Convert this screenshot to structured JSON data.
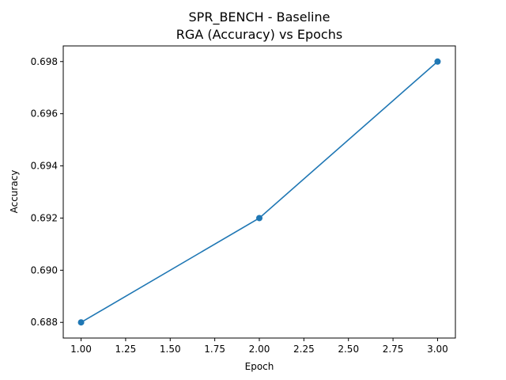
{
  "chart_data": {
    "type": "line",
    "title": "SPR_BENCH - Baseline",
    "subtitle": "RGA (Accuracy) vs Epochs",
    "xlabel": "Epoch",
    "ylabel": "Accuracy",
    "xlim": [
      0.9,
      3.1
    ],
    "ylim": [
      0.6874,
      0.6986
    ],
    "x_ticks": [
      1.0,
      1.25,
      1.5,
      1.75,
      2.0,
      2.25,
      2.5,
      2.75,
      3.0
    ],
    "x_tick_labels": [
      "1.00",
      "1.25",
      "1.50",
      "1.75",
      "2.00",
      "2.25",
      "2.50",
      "2.75",
      "3.00"
    ],
    "y_ticks": [
      0.688,
      0.69,
      0.692,
      0.694,
      0.696,
      0.698
    ],
    "y_tick_labels": [
      "0.688",
      "0.690",
      "0.692",
      "0.694",
      "0.696",
      "0.698"
    ],
    "grid": false,
    "series": [
      {
        "x": [
          1,
          2,
          3
        ],
        "values": [
          0.688,
          0.692,
          0.698
        ],
        "color": "#1f77b4",
        "marker": "circle"
      }
    ]
  }
}
